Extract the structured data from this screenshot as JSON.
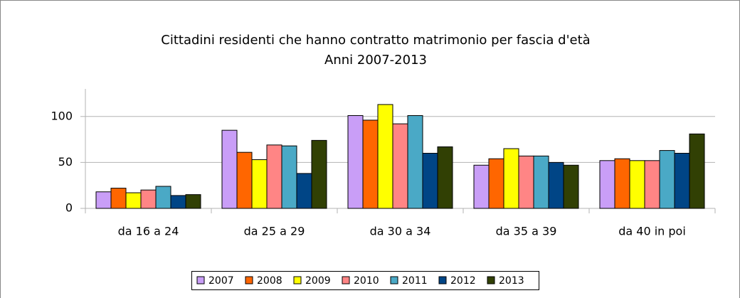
{
  "chart_data": {
    "type": "bar",
    "title": "Cittadini residenti che hanno contratto matrimonio per fascia d'età",
    "subtitle": "Anni 2007-2013",
    "categories": [
      "da 16 a 24",
      "da 25 a 29",
      "da 30 a 34",
      "da 35 a 39",
      "da 40 in poi"
    ],
    "series": [
      {
        "name": "2007",
        "color": "#c99ef7",
        "values": [
          18,
          85,
          101,
          47,
          52
        ]
      },
      {
        "name": "2008",
        "color": "#ff6600",
        "values": [
          22,
          61,
          96,
          54,
          54
        ]
      },
      {
        "name": "2009",
        "color": "#ffff00",
        "values": [
          17,
          53,
          113,
          65,
          52
        ]
      },
      {
        "name": "2010",
        "color": "#ff8585",
        "values": [
          20,
          69,
          92,
          57,
          52
        ]
      },
      {
        "name": "2011",
        "color": "#4aa9c6",
        "values": [
          24,
          68,
          101,
          57,
          63
        ]
      },
      {
        "name": "2012",
        "color": "#004586",
        "values": [
          14,
          38,
          60,
          50,
          60
        ]
      },
      {
        "name": "2013",
        "color": "#314004",
        "values": [
          15,
          74,
          67,
          47,
          81
        ]
      }
    ],
    "ylim": [
      0,
      130
    ],
    "yticks": [
      0,
      50,
      100
    ],
    "grid": true,
    "legend": "bottom"
  }
}
